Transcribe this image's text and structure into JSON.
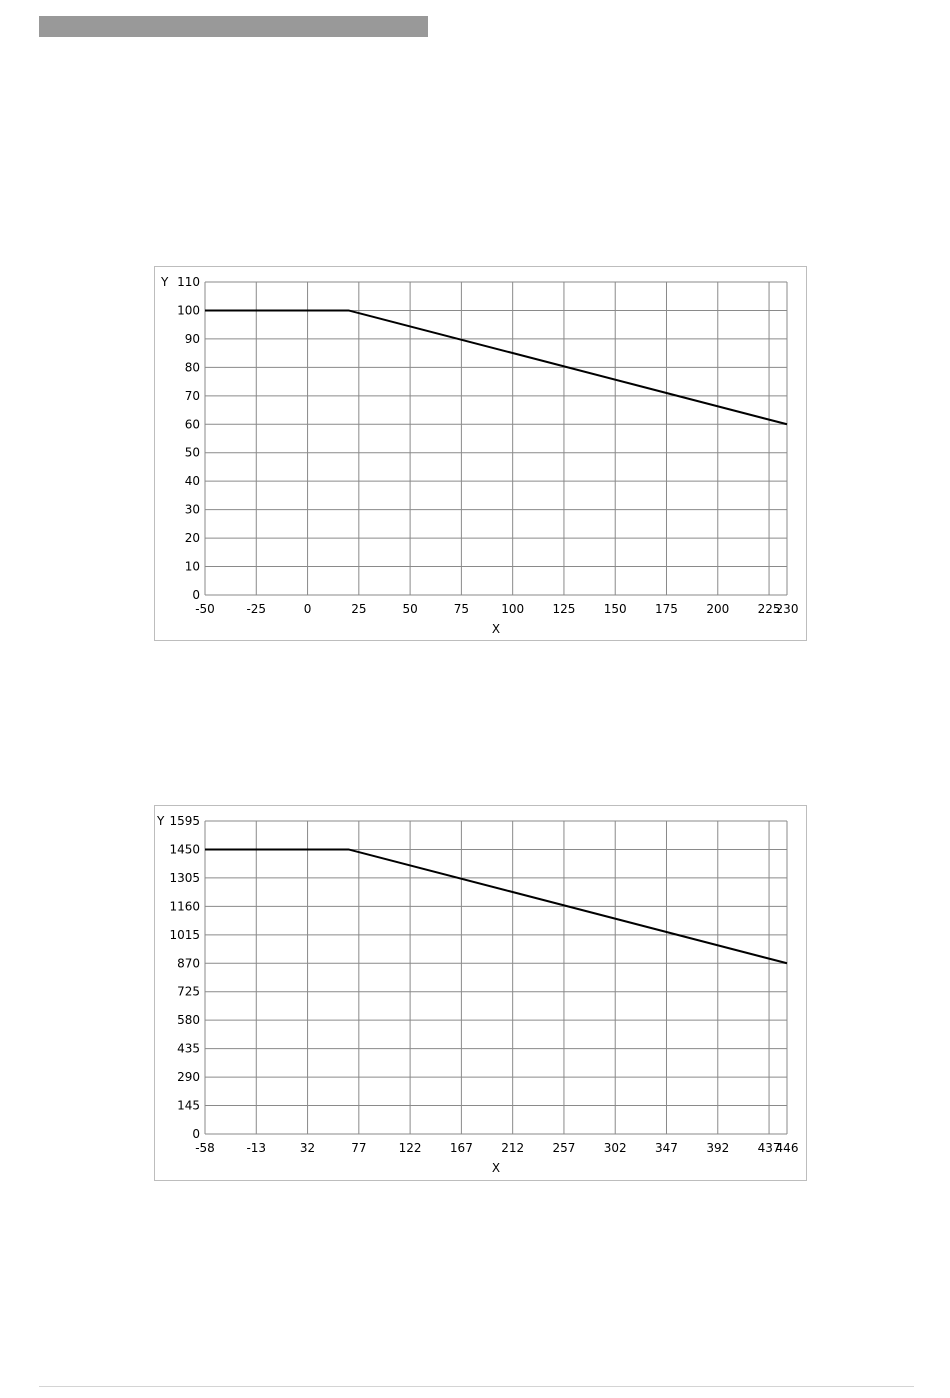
{
  "chart_data": [
    {
      "type": "line",
      "xlabel": "X",
      "ylabel": "Y",
      "x_ticks": [
        "-50",
        "-25",
        "0",
        "25",
        "50",
        "75",
        "100",
        "125",
        "150",
        "175",
        "200",
        "225",
        "230"
      ],
      "y_ticks": [
        "0",
        "10",
        "20",
        "30",
        "40",
        "50",
        "60",
        "70",
        "80",
        "90",
        "100",
        "110"
      ],
      "xlim": [
        -50,
        230
      ],
      "ylim": [
        0,
        110
      ],
      "grid": true,
      "series": [
        {
          "x": [
            -50,
            20,
            230
          ],
          "y": [
            100,
            100,
            60
          ]
        }
      ]
    },
    {
      "type": "line",
      "xlabel": "X",
      "ylabel": "Y",
      "x_ticks": [
        "-58",
        "-13",
        "32",
        "77",
        "122",
        "167",
        "212",
        "257",
        "302",
        "347",
        "392",
        "437",
        "446"
      ],
      "y_ticks": [
        "0",
        "145",
        "290",
        "435",
        "580",
        "725",
        "870",
        "1015",
        "1160",
        "1305",
        "1450",
        "1595"
      ],
      "xlim": [
        -58,
        446
      ],
      "ylim": [
        0,
        1595
      ],
      "grid": true,
      "series": [
        {
          "x": [
            -58,
            68,
            446
          ],
          "y": [
            1450,
            1450,
            870
          ]
        }
      ]
    }
  ]
}
